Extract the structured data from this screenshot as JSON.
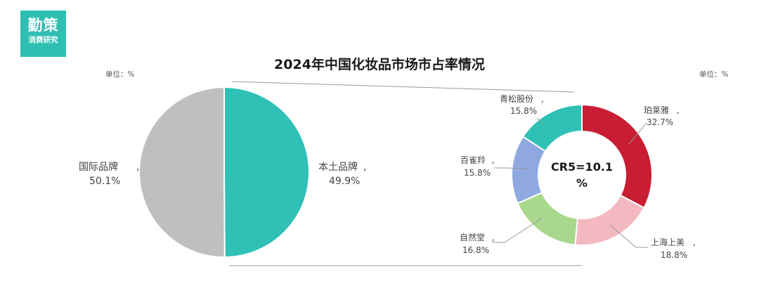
{
  "logo": {
    "line1": "勤策",
    "line2": "消费研究"
  },
  "title": "2024年中国化妆品市场市占率情况",
  "unit_left": "单位：%",
  "unit_right": "单位：%",
  "chart_data": [
    {
      "type": "pie",
      "slices": [
        {
          "name": "国际品牌",
          "value": 50.1,
          "label": "50.1%",
          "color": "#bfbfbf"
        },
        {
          "name": "本土品牌",
          "value": 49.9,
          "label": "49.9%",
          "color": "#2fc1b5"
        }
      ]
    },
    {
      "type": "pie",
      "donut": true,
      "center_label": [
        "CR5=10.1",
        "%"
      ],
      "slices": [
        {
          "name": "珀莱雅",
          "value": 32.7,
          "label": "32.7%",
          "color": "#c81d32"
        },
        {
          "name": "上海上美",
          "value": 18.8,
          "label": "18.8%",
          "color": "#f4b9c0"
        },
        {
          "name": "自然堂",
          "value": 16.8,
          "label": "16.8%",
          "color": "#a8d88c"
        },
        {
          "name": "百雀羚",
          "value": 15.8,
          "label": "15.8%",
          "color": "#8fa9e0"
        },
        {
          "name": "青松股份",
          "value": 15.8,
          "label": "15.8%",
          "color": "#2fc1b5"
        }
      ]
    }
  ]
}
